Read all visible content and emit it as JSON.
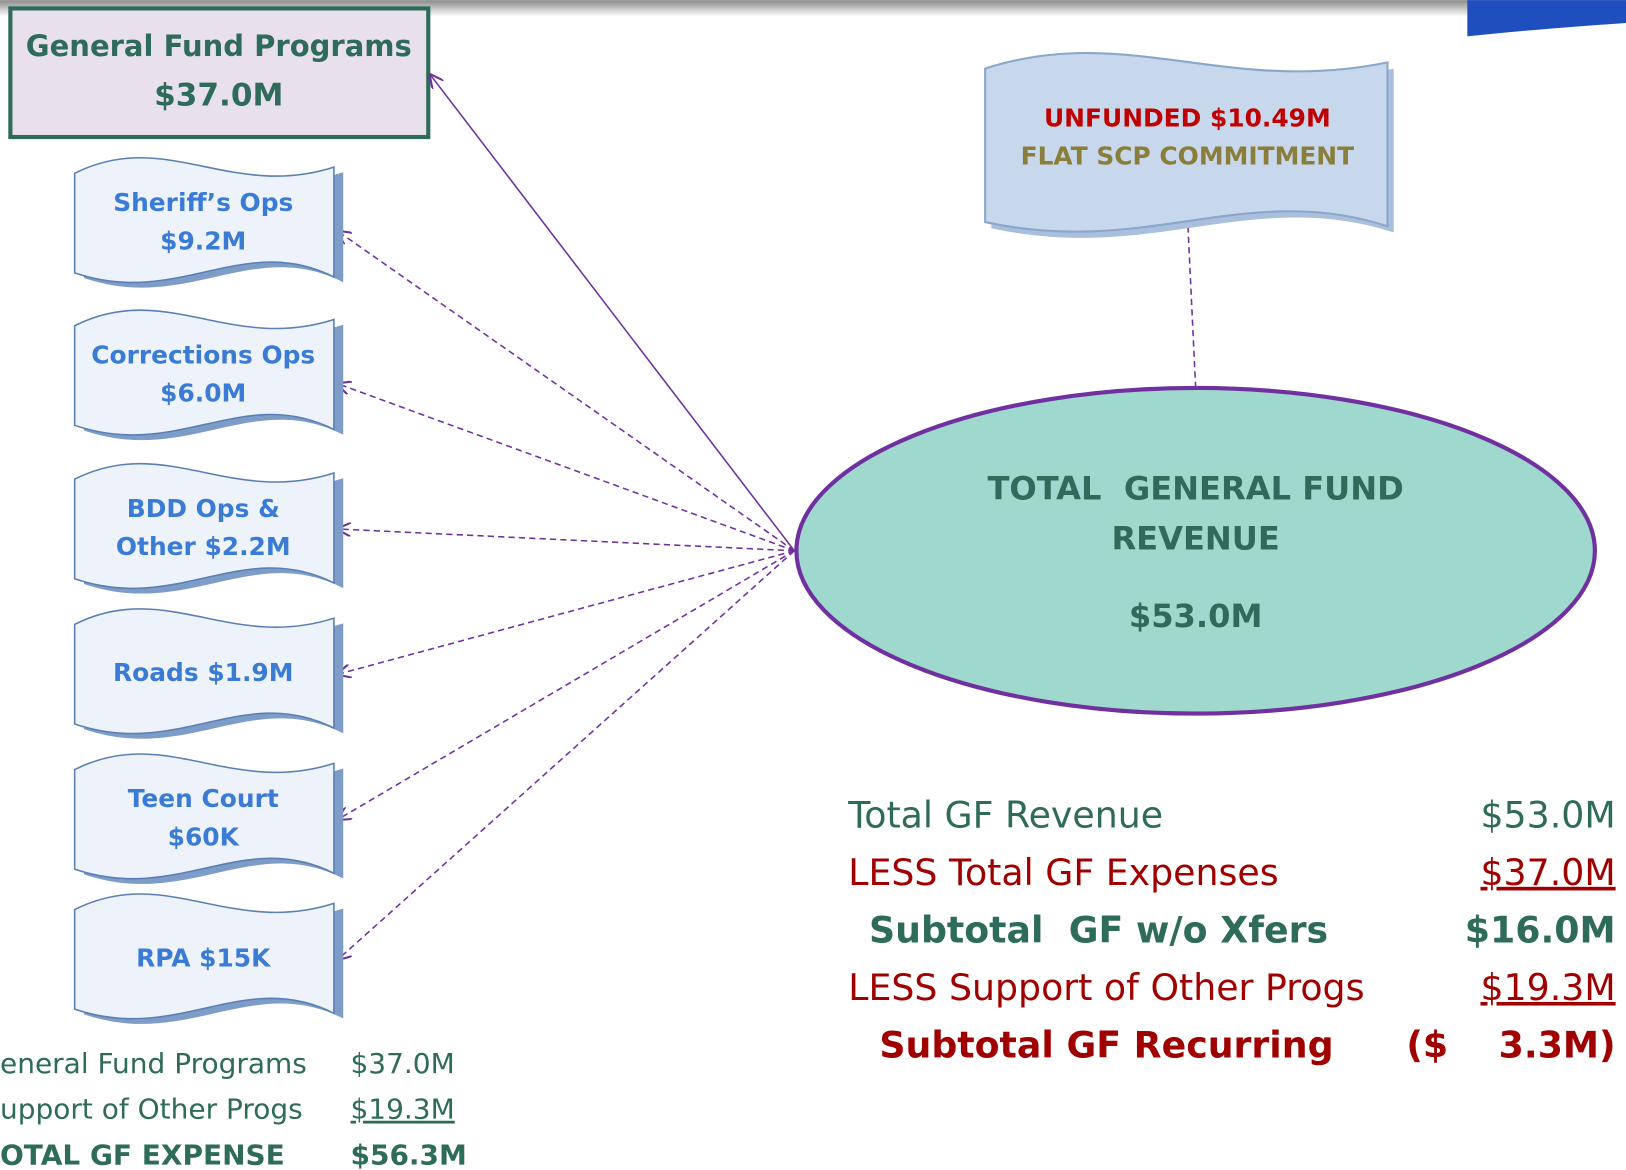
{
  "header": {
    "title": "General Fund Programs",
    "amount": "$37.0M"
  },
  "programs": [
    {
      "lines": [
        "Sheriff’s Ops",
        "$9.2M"
      ]
    },
    {
      "lines": [
        "Corrections Ops",
        "$6.0M"
      ]
    },
    {
      "lines": [
        "BDD Ops &",
        "Other $2.2M"
      ]
    },
    {
      "lines": [
        "Roads $1.9M"
      ]
    },
    {
      "lines": [
        "Teen Court",
        "$60K"
      ]
    },
    {
      "lines": [
        "RPA $15K"
      ]
    }
  ],
  "unfunded": {
    "lines": [
      "UNFUNDED $10.49M",
      "FLAT SCP COMMITMENT"
    ]
  },
  "revenue": {
    "lines": [
      "TOTAL  GENERAL FUND",
      "REVENUE"
    ],
    "amount": "$53.0M"
  },
  "summary": {
    "rows": [
      [
        "Total GF Revenue",
        "$53.0M"
      ],
      [
        "LESS Total GF Expenses",
        "$37.0M"
      ],
      [
        "Subtotal  GF w/o Xfers",
        "$16.0M"
      ],
      [
        "LESS Support of Other Progs",
        "$19.3M"
      ],
      [
        "Subtotal GF Recurring",
        "($    3.3M)"
      ]
    ]
  },
  "expense_summary": {
    "rows": [
      [
        "eneral Fund Programs",
        "$37.0M"
      ],
      [
        "upport of Other Progs",
        "$19.3M"
      ],
      [
        "OTAL GF EXPENSE",
        "$56.3M"
      ]
    ]
  }
}
